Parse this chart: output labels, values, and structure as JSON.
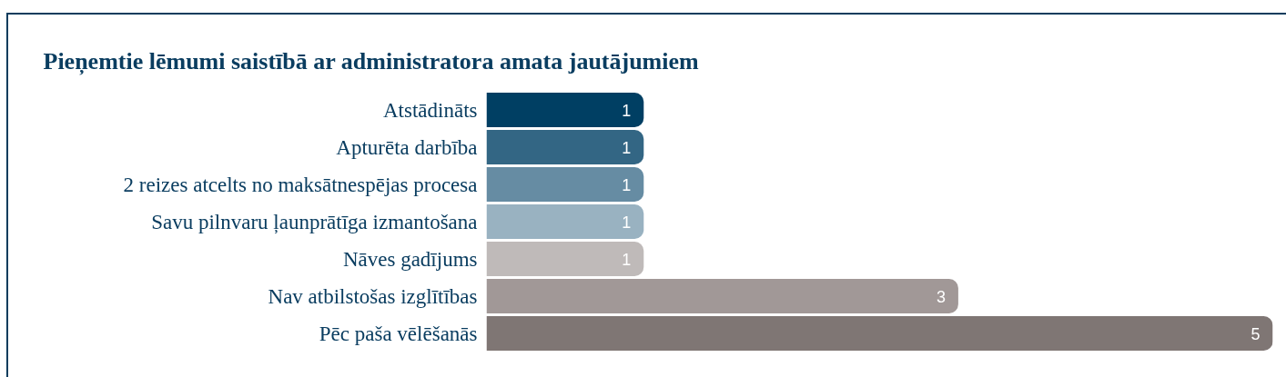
{
  "chart_data": {
    "type": "bar",
    "orientation": "horizontal",
    "title": "Pieņemtie lēmumi saistībā ar administratora amata jautājumiem",
    "categories": [
      "Atstādināts",
      "Apturēta darbība",
      "2 reizes atcelts no maksātnespējas procesa",
      "Savu pilnvaru ļaunprātīga izmantošana",
      "Nāves gadījums",
      "Nav atbilstošas izglītības",
      "Pēc paša vēlēšanās"
    ],
    "values": [
      1,
      1,
      1,
      1,
      1,
      3,
      5
    ],
    "colors": [
      "#003f63",
      "#336684",
      "#668ca3",
      "#99b2c1",
      "#bfbab9",
      "#a19897",
      "#7f7674"
    ],
    "data_labels": true
  }
}
